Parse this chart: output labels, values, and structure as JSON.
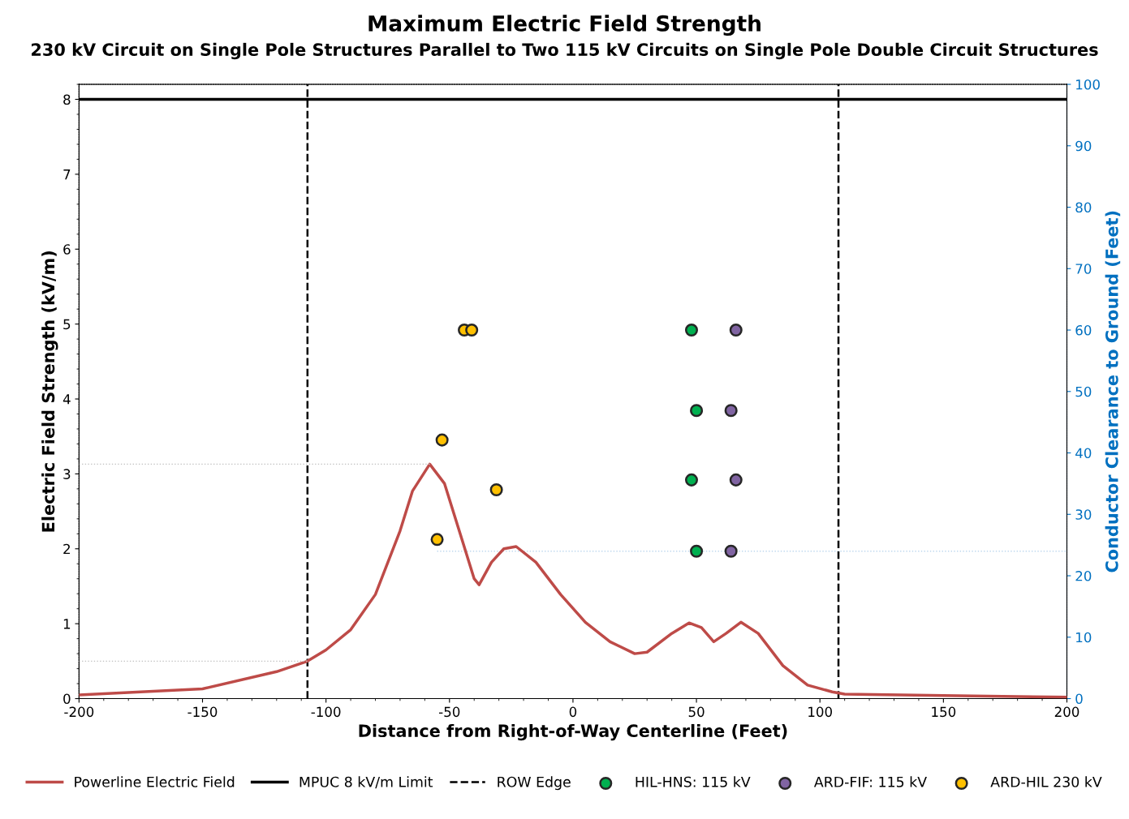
{
  "chart_data": {
    "type": "line",
    "title": "Maximum Electric Field Strength",
    "subtitle": "230 kV Circuit on Single Pole Structures Parallel to Two 115 kV Circuits on Single Pole Double Circuit Structures",
    "xlabel": "Distance from Right-of-Way Centerline (Feet)",
    "ylabel": "Electric Field Strength (kV/m)",
    "y2label": "Conductor Clearance to Ground (Feet)",
    "xlim": [
      -200,
      200
    ],
    "xticks": [
      -200,
      -150,
      -100,
      -50,
      0,
      50,
      100,
      150,
      200
    ],
    "ylim": [
      0,
      8.2
    ],
    "yticks": [
      0,
      1,
      2,
      3,
      4,
      5,
      6,
      7,
      8
    ],
    "y2lim": [
      0,
      100
    ],
    "y2ticks": [
      0,
      10,
      20,
      30,
      40,
      50,
      60,
      70,
      80,
      90,
      100
    ],
    "grid": false,
    "legend": "bottom",
    "ref_lines": [
      {
        "axis": "x",
        "value": -107.5,
        "label": "ROW Edge",
        "color": "#000000",
        "line_style": "dashed"
      },
      {
        "axis": "x",
        "value": 107.5,
        "color": "#000000",
        "line_style": "dashed"
      },
      {
        "axis": "y",
        "value": 8,
        "label": "MPUC 8 kV/m Limit",
        "color": "#000000",
        "line_style": "solid"
      }
    ],
    "series": [
      {
        "name": "Powerline Electric Field",
        "color": "#be4b48",
        "x": [
          -200,
          -150,
          -120,
          -107.5,
          -100,
          -90,
          -80,
          -70,
          -65,
          -58,
          -52,
          -45,
          -40,
          -38,
          -33,
          -28,
          -23,
          -15,
          -5,
          5,
          15,
          25,
          30,
          40,
          47,
          52,
          57,
          62,
          68,
          75,
          85,
          95,
          105,
          110,
          150,
          200
        ],
        "values": [
          0.05,
          0.13,
          0.36,
          0.5,
          0.65,
          0.92,
          1.39,
          2.24,
          2.77,
          3.13,
          2.87,
          2.13,
          1.6,
          1.52,
          1.82,
          2.0,
          2.03,
          1.82,
          1.39,
          1.02,
          0.76,
          0.6,
          0.62,
          0.87,
          1.01,
          0.95,
          0.76,
          0.87,
          1.02,
          0.87,
          0.44,
          0.18,
          0.09,
          0.06,
          0.04,
          0.02
        ]
      },
      {
        "color": "#c0c0c0",
        "line_style": "dotted",
        "x": [
          -200,
          -58
        ],
        "values": [
          3.13,
          3.13
        ]
      },
      {
        "color": "#c0c0c0",
        "line_style": "dotted",
        "x": [
          -200,
          -107.5
        ],
        "values": [
          0.5,
          0.5
        ]
      },
      {
        "axis": "y2",
        "color": "#bdd7ee",
        "line_style": "dotted",
        "x": [
          -55,
          200
        ],
        "values": [
          24,
          24
        ]
      },
      {
        "name": "HIL-HNS: 115 kV",
        "type": "scatter",
        "axis": "y2",
        "color": "#00b050",
        "marker": "circle",
        "x": [
          48,
          50,
          48,
          50
        ],
        "values": [
          60,
          46.9,
          35.6,
          24
        ]
      },
      {
        "name": "ARD-FIF: 115 kV",
        "type": "scatter",
        "axis": "y2",
        "color": "#8064a2",
        "marker": "circle",
        "x": [
          66,
          64,
          66,
          64
        ],
        "values": [
          60,
          46.9,
          35.6,
          24
        ]
      },
      {
        "name": "ARD-HIL 230 kV",
        "type": "scatter",
        "axis": "y2",
        "color": "#ffc000",
        "marker": "circle",
        "x": [
          -44,
          -41,
          -53,
          -31,
          -55
        ],
        "values": [
          60,
          60,
          42.1,
          34,
          25.9
        ]
      }
    ]
  }
}
